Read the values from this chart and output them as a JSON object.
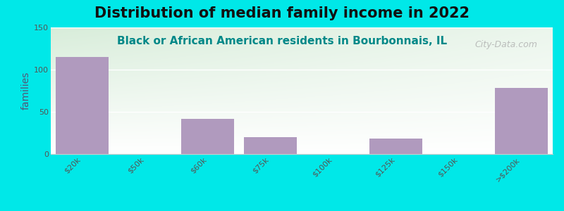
{
  "title": "Distribution of median family income in 2022",
  "subtitle": "Black or African American residents in Bourbonnais, IL",
  "categories": [
    "$20k",
    "$50k",
    "$60k",
    "$75k",
    "$100k",
    "$125k",
    "$150k",
    ">$200k"
  ],
  "values": [
    115,
    0,
    42,
    20,
    0,
    18,
    0,
    78
  ],
  "bar_color": "#b09abe",
  "background_outer": "#00e8e8",
  "background_inner_topleft": "#d8edda",
  "background_inner_white": "#ffffff",
  "ylabel": "families",
  "ylim": [
    0,
    150
  ],
  "yticks": [
    0,
    50,
    100,
    150
  ],
  "title_fontsize": 15,
  "subtitle_fontsize": 11,
  "tick_fontsize": 8,
  "watermark": "City-Data.com"
}
